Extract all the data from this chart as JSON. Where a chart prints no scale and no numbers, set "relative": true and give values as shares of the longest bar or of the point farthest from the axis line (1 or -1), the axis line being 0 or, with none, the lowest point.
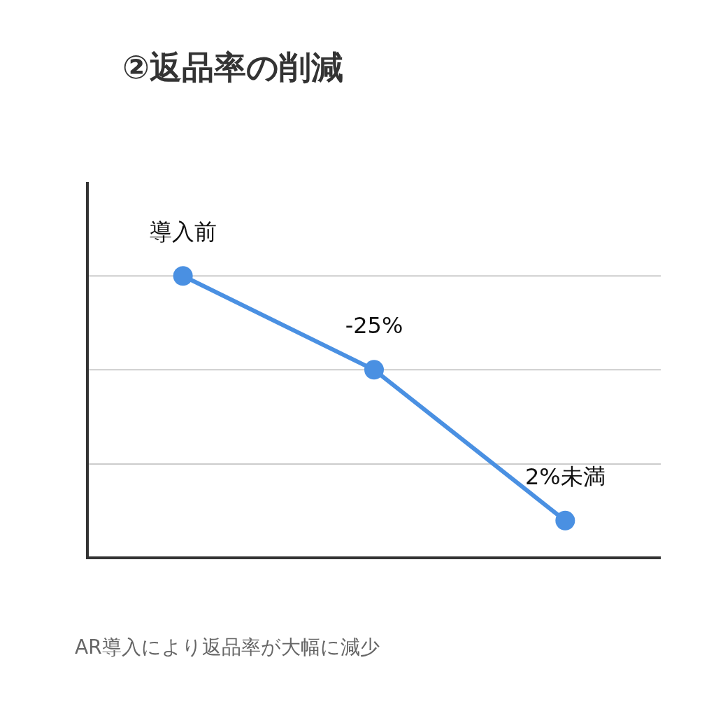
{
  "chart_data": {
    "type": "line",
    "title": "②返品率の削減",
    "relative": true,
    "categories": [
      null,
      null,
      null
    ],
    "series": [
      {
        "color": "#4a90e2",
        "values": [
          1,
          0.667,
          0.132
        ]
      }
    ],
    "annotations": [
      {
        "text": "導入前",
        "y": 1
      },
      {
        "text": "-25%",
        "y": 0.667
      },
      {
        "text": "2%未満",
        "y": 0.132
      },
      "AR導入により返品率が大幅に減少"
    ],
    "ref_lines": [
      {
        "axis": "y",
        "value": 1,
        "color": "#cccccc"
      },
      {
        "axis": "y",
        "value": 0.667,
        "color": "#cccccc"
      },
      {
        "axis": "y",
        "value": 0.333,
        "color": "#cccccc"
      }
    ],
    "marker": "circle",
    "line_style": "solid"
  }
}
